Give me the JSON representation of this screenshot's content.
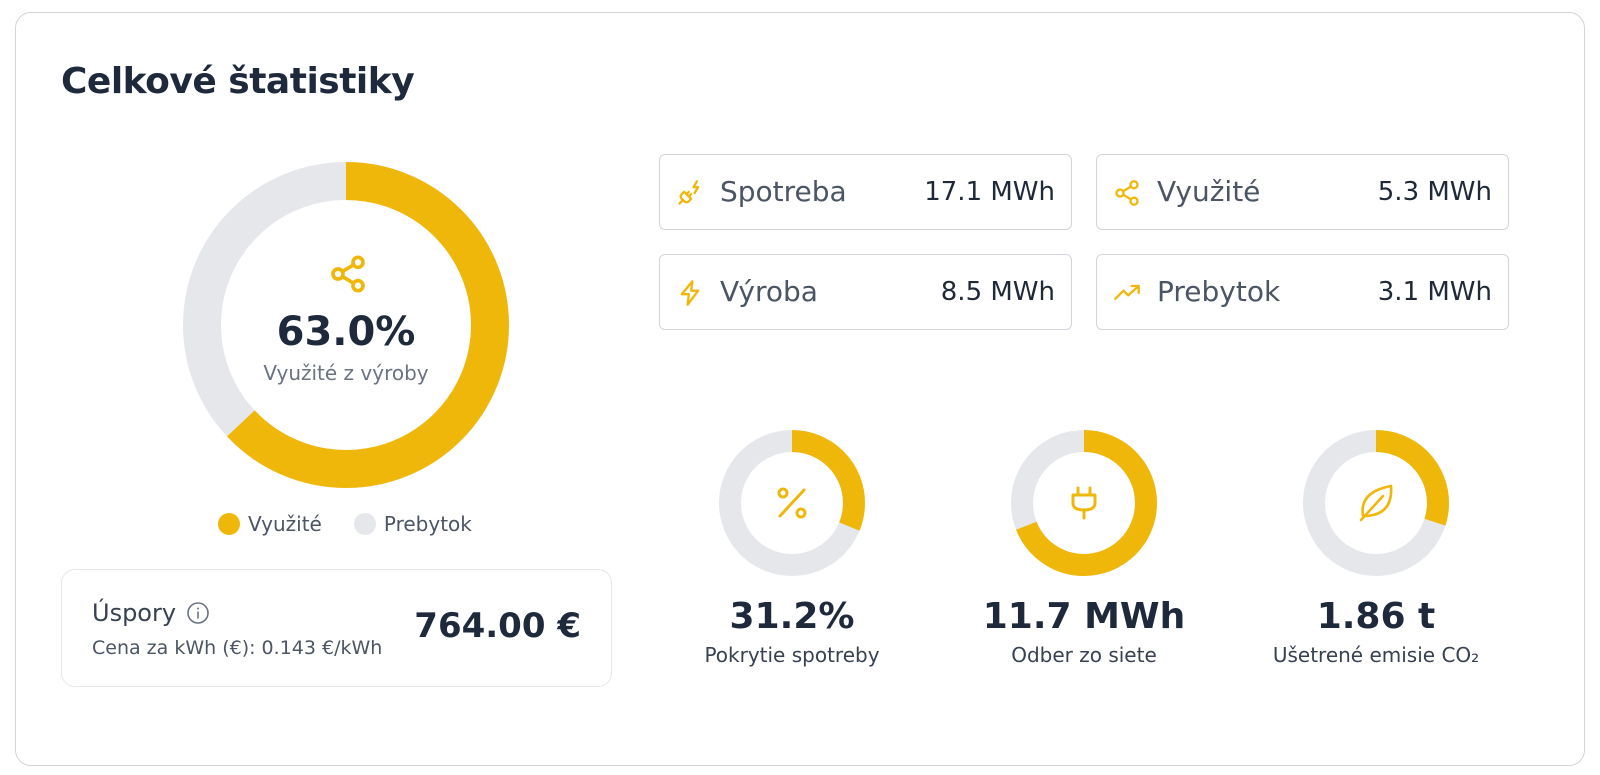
{
  "title": "Celkové štatistiky",
  "colors": {
    "accent": "#f0b70b",
    "track": "#e5e7eb"
  },
  "main_chart": {
    "value": "63.0%",
    "label": "Využité z výroby",
    "fraction": 0.63,
    "icon": "share-icon",
    "legend": [
      {
        "label": "Využité",
        "color": "#f0b70b"
      },
      {
        "label": "Prebytok",
        "color": "#e5e7eb"
      }
    ]
  },
  "savings": {
    "title": "Úspory",
    "subtitle": "Cena za kWh (€): 0.143 €/kWh",
    "value": "764.00 €",
    "icon": "info-icon"
  },
  "stats": [
    {
      "label": "Spotreba",
      "value": "17.1 MWh",
      "icon": "plug-lightning-icon"
    },
    {
      "label": "Využité",
      "value": "5.3 MWh",
      "icon": "share-icon"
    },
    {
      "label": "Výroba",
      "value": "8.5 MWh",
      "icon": "lightning-icon"
    },
    {
      "label": "Prebytok",
      "value": "3.1 MWh",
      "icon": "trending-up-icon"
    }
  ],
  "mini_charts": [
    {
      "value": "31.2%",
      "label": "Pokrytie spotreby",
      "fraction": 0.312,
      "icon": "percent-icon"
    },
    {
      "value": "11.7 MWh",
      "label": "Odber zo siete",
      "fraction": 0.69,
      "icon": "plug-icon"
    },
    {
      "value": "1.86 t",
      "label": "Ušetrené emisie CO₂",
      "fraction": 0.3,
      "icon": "leaf-icon"
    }
  ]
}
